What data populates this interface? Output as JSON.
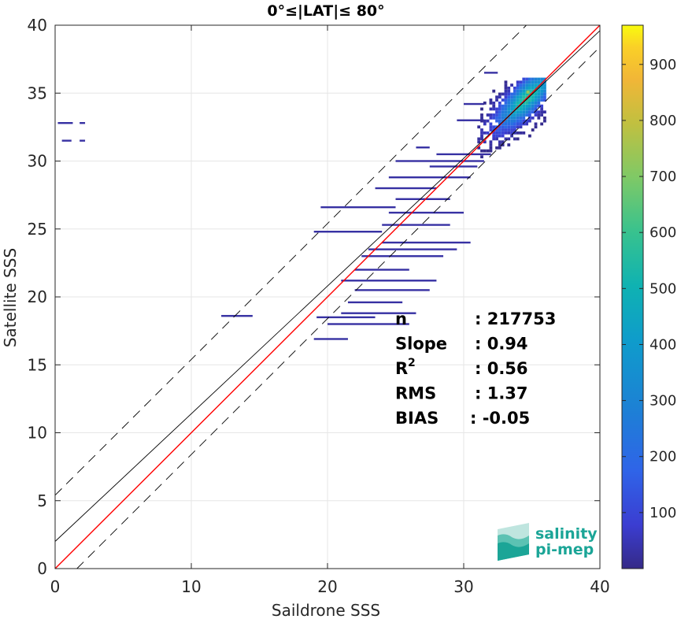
{
  "chart_data": {
    "type": "heatmap",
    "title": "0°≤|LAT|≤ 80°",
    "xlabel": "Saildrone SSS",
    "ylabel": "Satellite SSS",
    "xlim": [
      0,
      40
    ],
    "ylim": [
      0,
      40
    ],
    "xticks": [
      "0",
      "10",
      "20",
      "30",
      "40"
    ],
    "yticks": [
      "0",
      "5",
      "10",
      "15",
      "20",
      "25",
      "30",
      "35",
      "40"
    ],
    "grid": true,
    "colorbar": {
      "min": 0,
      "max": 970,
      "ticks": [
        "100",
        "200",
        "300",
        "400",
        "500",
        "600",
        "700",
        "800",
        "900"
      ],
      "colormap": "parula"
    },
    "lines": [
      {
        "name": "identity",
        "slope": 1,
        "intercept": 0,
        "color": "#ff0000",
        "style": "solid"
      },
      {
        "name": "regression",
        "slope": 0.94,
        "intercept": 2.0,
        "color": "#000000",
        "style": "solid"
      },
      {
        "name": "upper bound",
        "slope": 1,
        "intercept": 5.4,
        "color": "#000000",
        "style": "dashed"
      },
      {
        "name": "lower bound",
        "slope": 1,
        "intercept": -1.6,
        "color": "#000000",
        "style": "dashed"
      }
    ],
    "stats": [
      {
        "label": "n",
        "value": ": 217753"
      },
      {
        "label": "Slope",
        "value": ": 0.94"
      },
      {
        "label": "R",
        "sup": "2",
        "value": ": 0.56"
      },
      {
        "label": "RMS",
        "value": ": 1.37"
      },
      {
        "label": "BIAS",
        "value": ": -0.05"
      }
    ],
    "density_core": {
      "x_range": [
        31,
        36
      ],
      "y_range": [
        28,
        36
      ],
      "peak_at": [
        34.5,
        34.5
      ]
    },
    "sparse_segments": [
      {
        "x": [
          0.2,
          1.3
        ],
        "y": 32.8
      },
      {
        "x": [
          1.8,
          2.2
        ],
        "y": 32.8
      },
      {
        "x": [
          0.5,
          1.2
        ],
        "y": 31.5
      },
      {
        "x": [
          1.8,
          2.2
        ],
        "y": 31.5
      },
      {
        "x": [
          12.2,
          14.5
        ],
        "y": 18.6
      },
      {
        "x": [
          19.0,
          21.5
        ],
        "y": 16.9
      },
      {
        "x": [
          19.2,
          23.5
        ],
        "y": 18.5
      },
      {
        "x": [
          20.0,
          26.0
        ],
        "y": 18.0
      },
      {
        "x": [
          21.0,
          26.5
        ],
        "y": 18.8
      },
      {
        "x": [
          21.5,
          25.5
        ],
        "y": 19.6
      },
      {
        "x": [
          22.0,
          27.5
        ],
        "y": 20.5
      },
      {
        "x": [
          21.0,
          28.0
        ],
        "y": 21.2
      },
      {
        "x": [
          22.0,
          26.0
        ],
        "y": 22.0
      },
      {
        "x": [
          22.5,
          28.5
        ],
        "y": 23.0
      },
      {
        "x": [
          23.0,
          29.5
        ],
        "y": 23.5
      },
      {
        "x": [
          24.0,
          30.5
        ],
        "y": 24.0
      },
      {
        "x": [
          19.0,
          24.0
        ],
        "y": 24.8
      },
      {
        "x": [
          24.0,
          29.0
        ],
        "y": 25.3
      },
      {
        "x": [
          19.5,
          25.0
        ],
        "y": 26.6
      },
      {
        "x": [
          24.5,
          30.0
        ],
        "y": 26.2
      },
      {
        "x": [
          25.0,
          29.0
        ],
        "y": 27.2
      },
      {
        "x": [
          23.5,
          28.0
        ],
        "y": 28.0
      },
      {
        "x": [
          24.5,
          30.5
        ],
        "y": 28.8
      },
      {
        "x": [
          27.5,
          31.0
        ],
        "y": 29.6
      },
      {
        "x": [
          25.0,
          31.5
        ],
        "y": 30.0
      },
      {
        "x": [
          28.0,
          32.0
        ],
        "y": 30.5
      },
      {
        "x": [
          26.5,
          27.5
        ],
        "y": 31.0
      },
      {
        "x": [
          29.5,
          31.5
        ],
        "y": 33.0
      },
      {
        "x": [
          30.0,
          31.5
        ],
        "y": 34.2
      },
      {
        "x": [
          31.5,
          32.5
        ],
        "y": 36.5
      }
    ]
  },
  "logo": {
    "line1": "salinity",
    "line2": "pi-mep",
    "color": "#1ba597"
  }
}
